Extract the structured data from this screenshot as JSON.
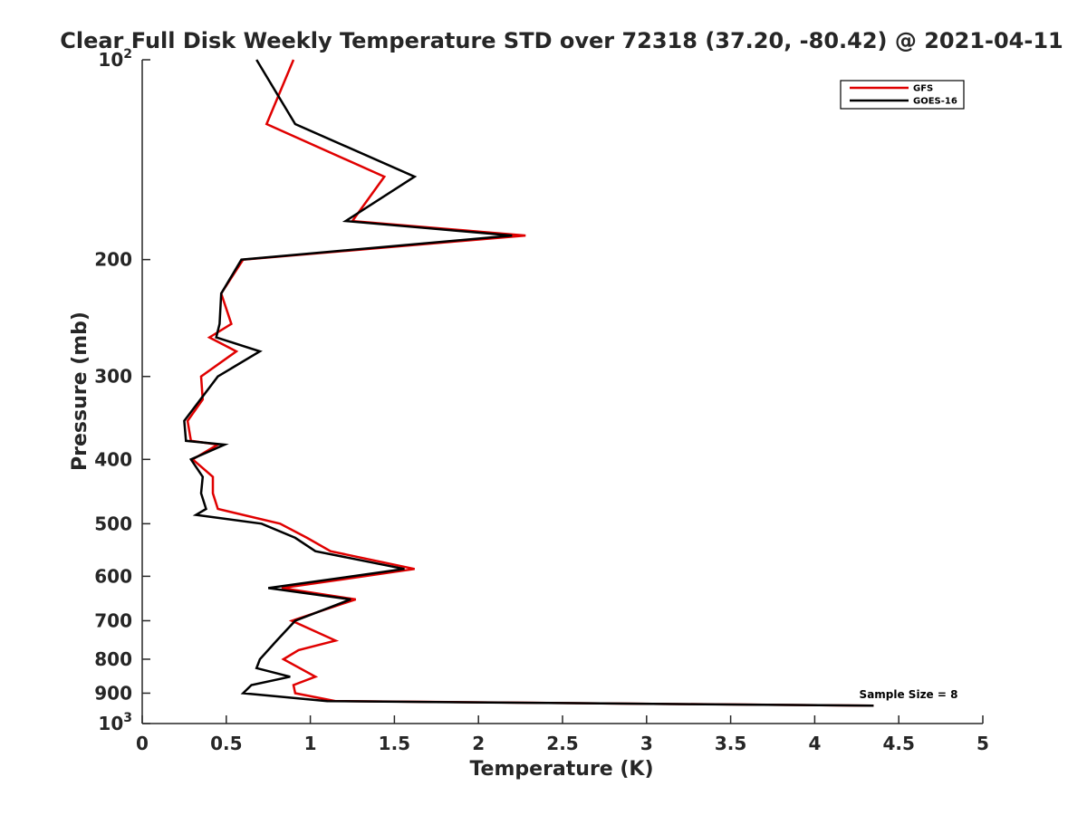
{
  "chart_data": {
    "type": "line",
    "title": "Clear Full Disk Weekly Temperature STD over 72318 (37.20, -80.42) @ 2021-04-11",
    "xlabel": "Temperature (K)",
    "ylabel": "Pressure (mb)",
    "xlim": [
      0,
      5
    ],
    "ylim": [
      100,
      1000
    ],
    "y_scale": "log",
    "y_reversed": true,
    "grid": false,
    "legend_position": "top-right",
    "annotation": "Sample Size = 8",
    "x_ticks": [
      {
        "value": 0,
        "label": "0"
      },
      {
        "value": 0.5,
        "label": "0.5"
      },
      {
        "value": 1,
        "label": "1"
      },
      {
        "value": 1.5,
        "label": "1.5"
      },
      {
        "value": 2,
        "label": "2"
      },
      {
        "value": 2.5,
        "label": "2.5"
      },
      {
        "value": 3,
        "label": "3"
      },
      {
        "value": 3.5,
        "label": "3.5"
      },
      {
        "value": 4,
        "label": "4"
      },
      {
        "value": 4.5,
        "label": "4.5"
      },
      {
        "value": 5,
        "label": "5"
      }
    ],
    "y_ticks": [
      {
        "value": 100,
        "label": "10",
        "sup": "2"
      },
      {
        "value": 200,
        "label": "200",
        "sup": ""
      },
      {
        "value": 300,
        "label": "300",
        "sup": ""
      },
      {
        "value": 400,
        "label": "400",
        "sup": ""
      },
      {
        "value": 500,
        "label": "500",
        "sup": ""
      },
      {
        "value": 600,
        "label": "600",
        "sup": ""
      },
      {
        "value": 700,
        "label": "700",
        "sup": ""
      },
      {
        "value": 800,
        "label": "800",
        "sup": ""
      },
      {
        "value": 900,
        "label": "900",
        "sup": ""
      },
      {
        "value": 1000,
        "label": "10",
        "sup": "3"
      }
    ],
    "series": [
      {
        "name": "GFS",
        "color": "#e00000",
        "points": [
          [
            0.9,
            100
          ],
          [
            0.74,
            125
          ],
          [
            1.44,
            150
          ],
          [
            1.25,
            175
          ],
          [
            2.28,
            184
          ],
          [
            0.6,
            200
          ],
          [
            0.47,
            225
          ],
          [
            0.53,
            250
          ],
          [
            0.4,
            262
          ],
          [
            0.56,
            275
          ],
          [
            0.35,
            300
          ],
          [
            0.36,
            325
          ],
          [
            0.27,
            350
          ],
          [
            0.29,
            375
          ],
          [
            0.45,
            380
          ],
          [
            0.3,
            400
          ],
          [
            0.42,
            425
          ],
          [
            0.42,
            450
          ],
          [
            0.45,
            475
          ],
          [
            0.82,
            500
          ],
          [
            0.98,
            525
          ],
          [
            1.12,
            550
          ],
          [
            1.62,
            585
          ],
          [
            0.83,
            625
          ],
          [
            1.27,
            650
          ],
          [
            0.89,
            700
          ],
          [
            1.15,
            750
          ],
          [
            0.93,
            775
          ],
          [
            0.84,
            800
          ],
          [
            1.03,
            850
          ],
          [
            0.9,
            875
          ],
          [
            0.91,
            900
          ],
          [
            1.15,
            925
          ],
          [
            4.35,
            940
          ]
        ]
      },
      {
        "name": "GOES-16",
        "color": "#000000",
        "points": [
          [
            0.68,
            100
          ],
          [
            0.91,
            125
          ],
          [
            1.62,
            150
          ],
          [
            1.21,
            175
          ],
          [
            2.2,
            184
          ],
          [
            0.59,
            200
          ],
          [
            0.47,
            225
          ],
          [
            0.46,
            250
          ],
          [
            0.44,
            262
          ],
          [
            0.7,
            275
          ],
          [
            0.45,
            300
          ],
          [
            0.25,
            350
          ],
          [
            0.26,
            375
          ],
          [
            0.49,
            380
          ],
          [
            0.29,
            400
          ],
          [
            0.36,
            425
          ],
          [
            0.35,
            450
          ],
          [
            0.38,
            475
          ],
          [
            0.32,
            485
          ],
          [
            0.71,
            500
          ],
          [
            0.91,
            525
          ],
          [
            1.03,
            550
          ],
          [
            1.56,
            585
          ],
          [
            0.75,
            625
          ],
          [
            1.24,
            650
          ],
          [
            0.91,
            700
          ],
          [
            0.8,
            750
          ],
          [
            0.7,
            800
          ],
          [
            0.68,
            825
          ],
          [
            0.88,
            850
          ],
          [
            0.65,
            875
          ],
          [
            0.6,
            900
          ],
          [
            1.1,
            925
          ],
          [
            4.35,
            940
          ]
        ]
      }
    ]
  }
}
